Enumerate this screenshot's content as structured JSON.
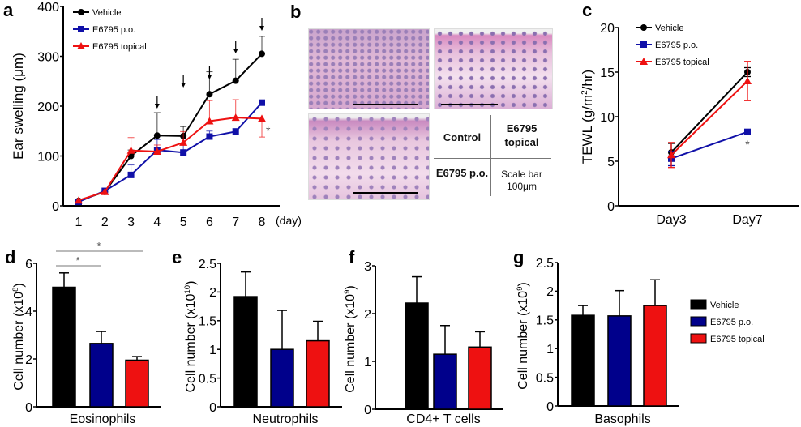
{
  "colors": {
    "Vehicle": "#000000",
    "E6795 p.o.": "#1010a8",
    "E6795 topical": "#ee1111",
    "bar_blue": "#00008b"
  },
  "panel_b": {
    "label": "b",
    "control": "Control",
    "topical": "E6795 topical",
    "po": "E6795 p.o.",
    "scale_bar": "Scale bar 100μm"
  },
  "chart_data": [
    {
      "panel": "a",
      "type": "line",
      "ylabel": "Ear swelling (μm)",
      "xunit": "(day)",
      "ylim": [
        0,
        400
      ],
      "yticks": [
        0,
        100,
        200,
        300,
        400
      ],
      "x": [
        1,
        2,
        3,
        4,
        5,
        6,
        7,
        8
      ],
      "arrows_at_days": [
        4,
        5,
        6,
        7,
        8
      ],
      "annotations": [
        {
          "text": "*",
          "x": 8
        }
      ],
      "legend": "top-left",
      "series": [
        {
          "name": "Vehicle",
          "marker": "circle",
          "values": [
            10,
            28,
            100,
            141,
            140,
            224,
            251,
            305
          ],
          "error": [
            0,
            0,
            12,
            46,
            19,
            45,
            43,
            35
          ]
        },
        {
          "name": "E6795 p.o.",
          "marker": "square",
          "values": [
            8,
            30,
            62,
            112,
            107,
            139,
            149,
            207
          ],
          "error": [
            0,
            0,
            20,
            21,
            18,
            11,
            6,
            5
          ]
        },
        {
          "name": "E6795 topical",
          "marker": "triangle",
          "values": [
            11,
            28,
            111,
            109,
            127,
            170,
            177,
            175
          ],
          "error": [
            0,
            0,
            26,
            13,
            22,
            41,
            36,
            37
          ]
        }
      ]
    },
    {
      "panel": "c",
      "type": "line",
      "ylabel": "TEWL (g/m2/hr)",
      "ylim": [
        0,
        20
      ],
      "yticks": [
        0,
        5,
        10,
        15,
        20
      ],
      "categories": [
        "Day3",
        "Day7"
      ],
      "legend": "top-left",
      "annotations": [
        {
          "text": "*",
          "x": "Day7"
        }
      ],
      "series": [
        {
          "name": "Vehicle",
          "marker": "circle",
          "values": [
            6,
            15
          ],
          "error": [
            1,
            0.5
          ]
        },
        {
          "name": "E6795 p.o.",
          "marker": "square",
          "values": [
            5.3,
            8.3
          ],
          "error": [
            0.8,
            0.2
          ]
        },
        {
          "name": "E6795 topical",
          "marker": "triangle",
          "values": [
            5.7,
            14
          ],
          "error": [
            1.4,
            2.2
          ]
        }
      ]
    },
    {
      "panel": "d",
      "type": "bar",
      "ylabel": "Cell number (x10^8)",
      "ylabel_base": "Cell number (x10",
      "ylabel_exp": "8",
      "xlabel": "Eosinophils",
      "ylim": [
        0,
        6
      ],
      "yticks": [
        0,
        2,
        4,
        6
      ],
      "values": [
        5.0,
        2.65,
        1.95
      ],
      "error": [
        0.6,
        0.5,
        0.15
      ],
      "significance": [
        {
          "from": 0,
          "to": 1,
          "text": "*"
        },
        {
          "from": 0,
          "to": 2,
          "text": "*"
        }
      ]
    },
    {
      "panel": "e",
      "type": "bar",
      "ylabel": "Cell number (x10^10)",
      "ylabel_base": "Cell number (x10",
      "ylabel_exp": "10",
      "xlabel": "Neutrophils",
      "ylim": [
        0,
        2.5
      ],
      "yticks": [
        0,
        0.5,
        1,
        1.5,
        2,
        2.5
      ],
      "values": [
        1.92,
        1.0,
        1.15
      ],
      "error": [
        0.43,
        0.68,
        0.34
      ]
    },
    {
      "panel": "f",
      "type": "bar",
      "ylabel": "Cell number (x10^9)",
      "ylabel_base": "Cell number (x10",
      "ylabel_exp": "9",
      "xlabel": "CD4+ T cells",
      "ylim": [
        0,
        3
      ],
      "yticks": [
        0,
        1,
        2,
        3
      ],
      "values": [
        2.22,
        1.15,
        1.3
      ],
      "error": [
        0.55,
        0.6,
        0.32
      ]
    },
    {
      "panel": "g",
      "type": "bar",
      "ylabel": "Cell number (x10^9)",
      "ylabel_base": "Cell number (x10",
      "ylabel_exp": "9",
      "xlabel": "Basophils",
      "ylim": [
        0,
        2.5
      ],
      "yticks": [
        0,
        0.5,
        1,
        1.5,
        2,
        2.5
      ],
      "values": [
        1.58,
        1.57,
        1.75
      ],
      "error": [
        0.17,
        0.44,
        0.45
      ],
      "legend": {
        "position": "right",
        "entries": [
          "Vehicle",
          "E6795 p.o.",
          "E6795 topical"
        ]
      }
    }
  ]
}
